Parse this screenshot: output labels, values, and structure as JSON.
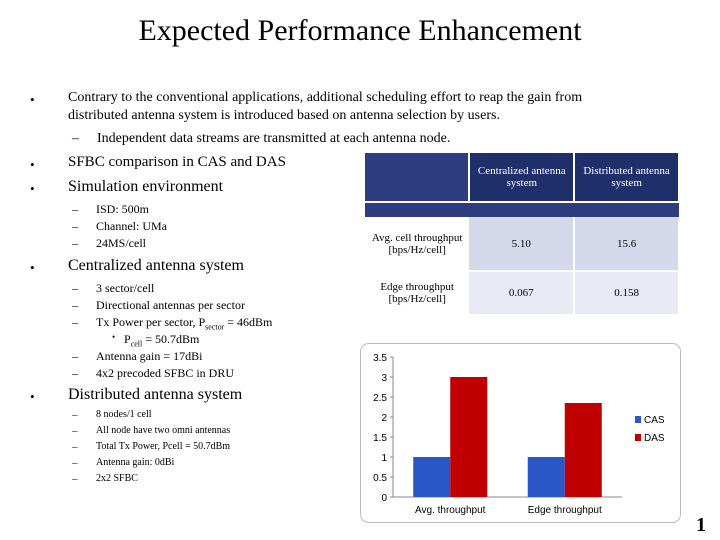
{
  "title": "Expected Performance Enhancement",
  "bullets": {
    "b1_line1": "Contrary to the conventional applications, additional scheduling effort to reap the gain from",
    "b1_line2": "distributed antenna system is introduced based on antenna selection by users.",
    "b1_sub": "Independent data streams are transmitted at each antenna node.",
    "b2": "SFBC comparison in CAS and DAS",
    "b3": "Simulation environment",
    "sim": [
      "ISD: 500m",
      "Channel: UMa",
      "24MS/cell"
    ],
    "b4": "Centralized antenna system",
    "cas": {
      "i1": "3 sector/cell",
      "i2": "Directional antennas per sector",
      "i3_pre": "Tx Power per sector, P",
      "i3_sub": "sector",
      "i3_post": " = 46dBm",
      "i3b_pre": "P",
      "i3b_sub": "cell",
      "i3b_post": " = 50.7dBm",
      "i4": "Antenna gain = 17dBi",
      "i5": "4x2 precoded SFBC in DRU"
    },
    "b5": "Distributed antenna system",
    "das": [
      "8 nodes/1 cell",
      "All node have two omni antennas",
      "Total Tx Power, Pcell = 50.7dBm",
      "Antenna gain: 0dBi",
      "2x2 SFBC"
    ]
  },
  "table": {
    "col1": "Centralized antenna system",
    "col2": "Distributed antenna system",
    "row1_label": "Avg. cell throughput [bps/Hz/cell]",
    "row1_cas": "5.10",
    "row1_das": "15.6",
    "row2_label": "Edge throughput [bps/Hz/cell]",
    "row2_cas": "0.067",
    "row2_das": "0.158"
  },
  "chart_data": {
    "type": "bar",
    "categories": [
      "Avg. throughput",
      "Edge throughput"
    ],
    "series": [
      {
        "name": "CAS",
        "values": [
          1.0,
          1.0
        ],
        "color": "#2a56c6"
      },
      {
        "name": "DAS",
        "values": [
          3.0,
          2.35
        ],
        "color": "#c00000"
      }
    ],
    "ylim": [
      0,
      3.5
    ],
    "yticks": [
      "0",
      "0.5",
      "1",
      "1.5",
      "2",
      "2.5",
      "3",
      "3.5"
    ],
    "legend": "right"
  },
  "page_number": "1"
}
